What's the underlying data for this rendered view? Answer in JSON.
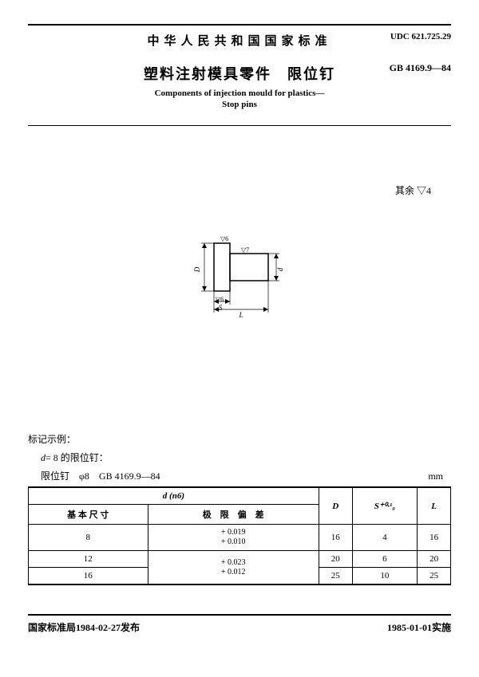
{
  "header": {
    "country_title": "中华人民共和国国家标准",
    "main_title": "塑料注射模具零件　限位钉",
    "en_title_1": "Components of injection mould for plastics—",
    "en_title_2": "Stop pins",
    "udc": "UDC 621.725.29",
    "gb": "GB 4169.9—84"
  },
  "note": {
    "other": "其余 ▽4"
  },
  "diagram": {
    "labels": {
      "D": "D",
      "d": "d",
      "S": "S",
      "L": "L",
      "surf1": "▽6",
      "surf2": "▽7",
      "surf3": "▽6"
    }
  },
  "marking": {
    "title": "标记示例：",
    "line1": "d= 8 的限位钉：",
    "line2": "限位钉　φ8　GB 4169.9—84"
  },
  "table": {
    "unit": "mm",
    "header": {
      "d_col": "d (n6)",
      "basic": "基 本 尺 寸",
      "tolerance": "极　限　偏　差",
      "D": "D",
      "S": "S⁺⁰·¹₀",
      "L": "L"
    },
    "rows": [
      {
        "basic": "8",
        "tol_upper": "+ 0.019",
        "tol_lower": "+ 0.010",
        "D": "16",
        "S": "4",
        "L": "16"
      },
      {
        "basic": "12",
        "tol_upper": "+ 0.023",
        "tol_lower": "+ 0.012",
        "D": "20",
        "S": "6",
        "L": "20"
      },
      {
        "basic": "16",
        "tol_upper_shared": true,
        "D": "25",
        "S": "10",
        "L": "25"
      }
    ]
  },
  "footer": {
    "left": "国家标准局1984-02-27发布",
    "right": "1985-01-01实施"
  },
  "colors": {
    "text": "#000000",
    "bg": "#ffffff"
  }
}
